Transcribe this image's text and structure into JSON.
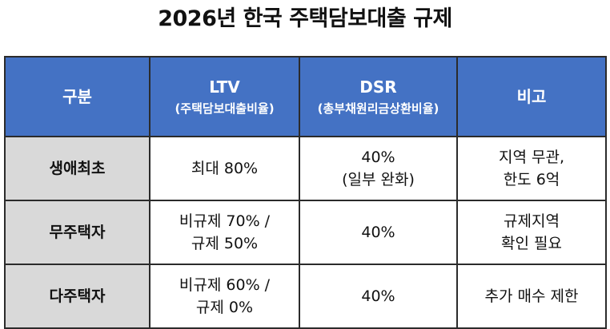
{
  "title": "2026년 한국 주택담보대출 규제",
  "header": {
    "col0": "구분",
    "col1_main": "LTV",
    "col1_sub": "(주택담보대출비율)",
    "col2_main": "DSR",
    "col2_sub": "(총부채원리금상환비율)",
    "col3": "비고"
  },
  "rows": [
    {
      "category": "생애최초",
      "ltv": [
        "최대 80%"
      ],
      "dsr": [
        "40%",
        "(일부 완화)"
      ],
      "note": [
        "지역 무관,",
        "한도 6억"
      ]
    },
    {
      "category": "무주택자",
      "ltv": [
        "비규제 70% /",
        "규제 50%"
      ],
      "dsr": [
        "40%"
      ],
      "note": [
        "규제지역",
        "확인 필요"
      ]
    },
    {
      "category": "다주택자",
      "ltv": [
        "비규제 60% /",
        "규제 0%"
      ],
      "dsr": [
        "40%"
      ],
      "note": [
        "추가 매수 제한"
      ]
    }
  ],
  "colors": {
    "header_bg": "#4472c4",
    "label_bg": "#d9d9d9",
    "border": "#2b2b2b"
  }
}
